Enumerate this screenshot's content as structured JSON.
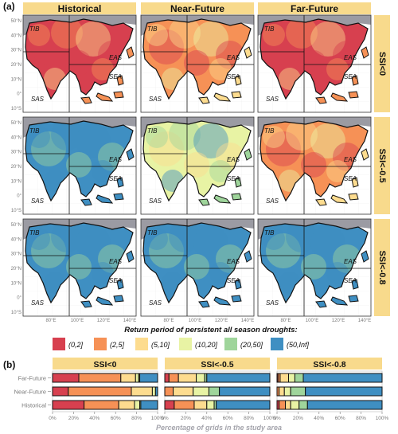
{
  "panel_a": {
    "letter": "(a)",
    "columns": [
      "Historical",
      "Near-Future",
      "Far-Future"
    ],
    "rows": [
      "SSI<0",
      "SSI<-0.5",
      "SSI<-0.8"
    ],
    "region_labels": [
      "TIB",
      "EAS",
      "SEA",
      "SAS"
    ],
    "lat_ticks": [
      "50°N",
      "40°N",
      "30°N",
      "20°N",
      "10°N",
      "0°",
      "10°S"
    ],
    "lon_ticks": [
      "80°E",
      "100°E",
      "120°E",
      "140°E"
    ]
  },
  "legend": {
    "title": "Return period of persistent all season droughts:",
    "items": [
      {
        "label": "(0,2]",
        "color": "#d7404f"
      },
      {
        "label": "(2,5]",
        "color": "#f69156"
      },
      {
        "label": "(5,10]",
        "color": "#fddc8f"
      },
      {
        "label": "(10,20]",
        "color": "#e8f3a4"
      },
      {
        "label": "(20,50]",
        "color": "#9fd59b"
      },
      {
        "label": "(50,Inf]",
        "color": "#3f8fc2"
      }
    ]
  },
  "map_dominant_class": [
    [
      "(0,2]",
      "(2,5]",
      "(0,2]"
    ],
    [
      "(50,Inf]",
      "(10,20]",
      "(2,5]"
    ],
    [
      "(50,Inf]",
      "(50,Inf]",
      "(50,Inf]"
    ]
  ],
  "chart_data": {
    "type": "bar",
    "orientation": "horizontal",
    "stacked": true,
    "panel_letter": "(b)",
    "xlabel": "Percentage of grids in the study area",
    "x_ticks": [
      "0%",
      "20%",
      "40%",
      "60%",
      "80%",
      "100%"
    ],
    "xlim": [
      0,
      100
    ],
    "categories": [
      "Far-Future",
      "Near-Future",
      "Historical"
    ],
    "facets": [
      {
        "title": "SSI<0",
        "series": [
          {
            "name": "(0,2]",
            "values": [
              25,
              15,
              30
            ]
          },
          {
            "name": "(2,5]",
            "values": [
              40,
              60,
              33
            ]
          },
          {
            "name": "(5,10]",
            "values": [
              14,
              20,
              15
            ]
          },
          {
            "name": "(10,20]",
            "values": [
              3,
              3,
              5
            ]
          },
          {
            "name": "(20,50]",
            "values": [
              1,
              0,
              1
            ]
          },
          {
            "name": "(50,Inf]",
            "values": [
              17,
              2,
              16
            ]
          }
        ]
      },
      {
        "title": "SSI<-0.5",
        "series": [
          {
            "name": "(0,2]",
            "values": [
              4,
              0,
              9
            ]
          },
          {
            "name": "(2,5]",
            "values": [
              9,
              8,
              19
            ]
          },
          {
            "name": "(5,10]",
            "values": [
              17,
              19,
              12
            ]
          },
          {
            "name": "(10,20]",
            "values": [
              8,
              15,
              7
            ]
          },
          {
            "name": "(20,50]",
            "values": [
              2,
              10,
              2
            ]
          },
          {
            "name": "(50,Inf]",
            "values": [
              60,
              48,
              51
            ]
          }
        ]
      },
      {
        "title": "SSI<-0.8",
        "series": [
          {
            "name": "(0,2]",
            "values": [
              1,
              0,
              2
            ]
          },
          {
            "name": "(2,5]",
            "values": [
              2,
              2,
              6
            ]
          },
          {
            "name": "(5,10]",
            "values": [
              8,
              5,
              5
            ]
          },
          {
            "name": "(10,20]",
            "values": [
              6,
              6,
              8
            ]
          },
          {
            "name": "(20,50]",
            "values": [
              8,
              14,
              8
            ]
          },
          {
            "name": "(50,Inf]",
            "values": [
              75,
              73,
              71
            ]
          }
        ]
      }
    ]
  }
}
